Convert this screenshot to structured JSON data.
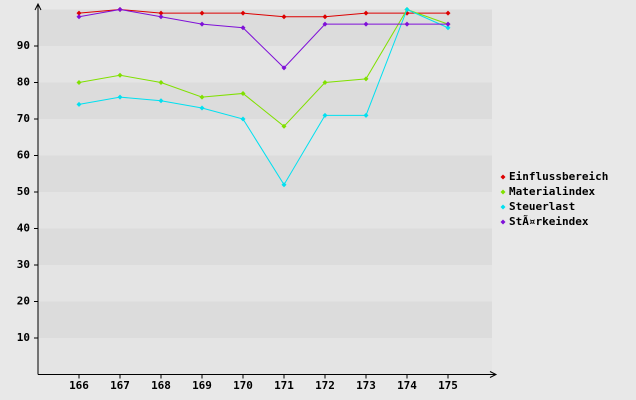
{
  "chart_data": {
    "type": "line",
    "categories": [
      "166",
      "167",
      "168",
      "169",
      "170",
      "171",
      "172",
      "173",
      "174",
      "175"
    ],
    "series": [
      {
        "name": "Einflussbereich",
        "color": "#dd0000",
        "values": [
          99,
          100,
          99,
          99,
          99,
          98,
          98,
          99,
          99,
          99
        ]
      },
      {
        "name": "Materialindex",
        "color": "#80e000",
        "values": [
          80,
          82,
          80,
          76,
          77,
          68,
          80,
          81,
          100,
          96
        ]
      },
      {
        "name": "Steuerlast",
        "color": "#00e0f0",
        "values": [
          74,
          76,
          75,
          73,
          70,
          52,
          71,
          71,
          100,
          95
        ]
      },
      {
        "name": "StÃ¤rkeindex",
        "color": "#7f10d8",
        "values": [
          98,
          100,
          98,
          96,
          95,
          84,
          96,
          96,
          96,
          96
        ]
      }
    ],
    "ylim": [
      0,
      100
    ],
    "yticks": [
      10,
      20,
      30,
      40,
      50,
      60,
      70,
      80,
      90
    ],
    "grid": true,
    "legend": "right"
  }
}
